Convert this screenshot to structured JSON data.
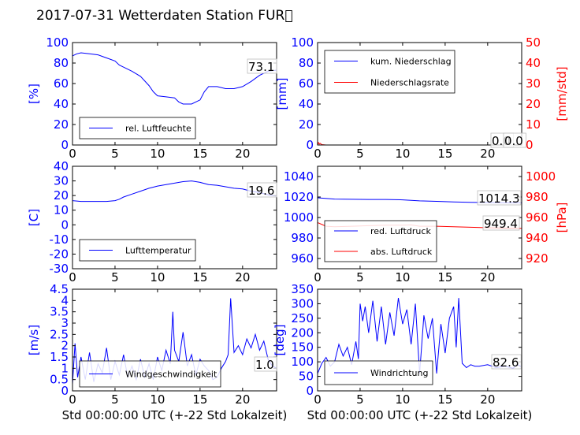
{
  "title": "2017-07-31 Wetterdaten Station FUR\u0000",
  "chart_data": [
    {
      "type": "line",
      "ylabel": "[%]",
      "xlim": [
        0,
        24
      ],
      "ylim": [
        0,
        100
      ],
      "xticks": [
        0,
        5,
        10,
        15,
        20
      ],
      "yticks": [
        0,
        20,
        40,
        60,
        80,
        100
      ],
      "legend": {
        "placement": "lower-center",
        "entries": [
          "rel. Luftfeuchte"
        ]
      },
      "last_value_label": "73.1",
      "series": [
        {
          "name": "rel. Luftfeuchte",
          "color": "#0000ff",
          "axis": "left",
          "x": [
            0,
            0.5,
            1,
            2,
            3,
            4,
            5,
            5.5,
            6,
            7,
            8,
            9,
            9.5,
            10,
            11,
            12,
            12.5,
            13,
            14,
            15,
            15.5,
            16,
            17,
            18,
            19,
            20,
            21,
            22,
            23,
            24
          ],
          "y": [
            87,
            89,
            90,
            89,
            88,
            85,
            82,
            78,
            76,
            72,
            67,
            58,
            52,
            48,
            47,
            46,
            42,
            40,
            40,
            44,
            52,
            57,
            57,
            55,
            55,
            57,
            62,
            68,
            72,
            73.1
          ]
        }
      ]
    },
    {
      "type": "line",
      "ylabel": "[mm]",
      "y2label": "[mm/std]",
      "xlim": [
        0,
        24
      ],
      "ylim": [
        0,
        100
      ],
      "y2lim": [
        0,
        50
      ],
      "xticks": [
        0,
        5,
        10,
        15,
        20
      ],
      "yticks": [
        0,
        20,
        40,
        60,
        80,
        100
      ],
      "y2ticks": [
        0,
        10,
        20,
        30,
        40,
        50
      ],
      "legend": {
        "placement": "top-left",
        "entries": [
          "kum. Niederschlag",
          "Niederschlagsrate"
        ]
      },
      "last_value_label": "0.0",
      "last_value_label_2": "0.0",
      "series": [
        {
          "name": "kum. Niederschlag",
          "color": "#0000ff",
          "axis": "left",
          "x": [
            0,
            24
          ],
          "y": [
            0,
            0
          ]
        },
        {
          "name": "Niederschlagsrate",
          "color": "#ff0000",
          "axis": "right",
          "x": [
            0,
            0.1,
            0.2,
            0.3,
            0.5,
            1,
            24
          ],
          "y": [
            0,
            1.2,
            0.5,
            0.8,
            0.2,
            0,
            0
          ]
        }
      ]
    },
    {
      "type": "line",
      "ylabel": "[C]",
      "xlim": [
        0,
        24
      ],
      "ylim": [
        -30,
        40
      ],
      "xticks": [
        0,
        5,
        10,
        15,
        20
      ],
      "yticks": [
        -30,
        -20,
        -10,
        0,
        10,
        20,
        30,
        40
      ],
      "legend": {
        "placement": "lower-center",
        "entries": [
          "Lufttemperatur"
        ]
      },
      "last_value_label": "19.6",
      "series": [
        {
          "name": "Lufttemperatur",
          "color": "#0000ff",
          "axis": "left",
          "x": [
            0,
            1,
            2,
            3,
            4,
            5,
            5.5,
            6,
            7,
            8,
            9,
            10,
            11,
            12,
            13,
            14,
            15,
            16,
            17,
            18,
            19,
            20,
            21,
            22,
            23,
            24
          ],
          "y": [
            16.5,
            16,
            16,
            16,
            16,
            16.5,
            17.5,
            19,
            21,
            23,
            25,
            26.5,
            27.5,
            28.5,
            29.5,
            30,
            29,
            27.5,
            27,
            26,
            25,
            24.5,
            23,
            22,
            20.5,
            19.6
          ]
        }
      ]
    },
    {
      "type": "line",
      "y2label": "[hPa]",
      "xlim": [
        0,
        24
      ],
      "ylim": [
        950,
        1050
      ],
      "y2lim": [
        910,
        1010
      ],
      "xticks": [
        0,
        5,
        10,
        15,
        20
      ],
      "yticks": [
        960,
        980,
        1000,
        1020,
        1040
      ],
      "y2ticks": [
        920,
        940,
        960,
        980,
        1000
      ],
      "legend": {
        "placement": "lower-left",
        "entries": [
          "red. Luftdruck",
          "abs. Luftdruck"
        ]
      },
      "last_value_label": "1014.3",
      "last_value_label_2": "949.4",
      "series": [
        {
          "name": "red. Luftdruck",
          "color": "#0000ff",
          "axis": "left",
          "x": [
            0,
            2,
            4,
            6,
            8,
            10,
            11,
            12,
            14,
            16,
            18,
            20,
            22,
            24
          ],
          "y": [
            1019.2,
            1018,
            1017.8,
            1017.6,
            1017.6,
            1017.2,
            1016.8,
            1016.2,
            1015.8,
            1015.2,
            1014.8,
            1014.6,
            1014.4,
            1014.3
          ]
        },
        {
          "name": "abs. Luftdruck",
          "color": "#ff0000",
          "axis": "right",
          "x": [
            0,
            1,
            2,
            4,
            6,
            8,
            10,
            11,
            12,
            14,
            16,
            18,
            20,
            22,
            24
          ],
          "y": [
            955,
            951.5,
            951,
            951.5,
            952,
            952.5,
            952.5,
            952.8,
            951.5,
            951.5,
            951,
            950.5,
            950,
            949.6,
            949.4
          ]
        }
      ]
    },
    {
      "type": "line",
      "ylabel": "[m/s]",
      "xlabel": "Std 00:00:00 UTC (+-22 Std Lokalzeit)",
      "xlim": [
        0,
        24
      ],
      "ylim": [
        0,
        4.5
      ],
      "xticks": [
        0,
        5,
        10,
        15,
        20
      ],
      "yticks": [
        0,
        0.5,
        1,
        1.5,
        2,
        2.5,
        3,
        3.5,
        4,
        4.5
      ],
      "legend": {
        "placement": "lower-center",
        "entries": [
          "Windgeschwindigkeit"
        ]
      },
      "last_value_label": "1.0",
      "series": [
        {
          "name": "Windgeschwindigkeit",
          "color": "#0000ff",
          "axis": "left",
          "x": [
            0,
            0.3,
            0.6,
            1,
            1.5,
            2,
            2.5,
            3,
            3.5,
            4,
            4.5,
            5,
            5.5,
            6,
            6.5,
            7,
            7.5,
            8,
            8.5,
            9,
            9.5,
            10,
            10.5,
            11,
            11.5,
            11.8,
            12,
            12.5,
            13,
            13.5,
            14,
            14.5,
            15,
            15.5,
            16,
            16.5,
            17,
            17.5,
            18,
            18.3,
            18.6,
            19,
            19.5,
            20,
            20.5,
            21,
            21.5,
            22,
            22.5,
            23,
            23.5,
            24
          ],
          "y": [
            0.3,
            2.1,
            0.6,
            1.5,
            0.5,
            1.7,
            0.4,
            1.2,
            0.8,
            1.9,
            0.5,
            1.3,
            0.7,
            1.6,
            0.6,
            1.1,
            0.5,
            1.4,
            0.6,
            1.2,
            0.5,
            1.5,
            0.9,
            1.8,
            1.2,
            3.5,
            1.8,
            1.3,
            2.6,
            1.1,
            1.6,
            0.7,
            1.4,
            1.1,
            0.9,
            0.5,
            0.6,
            1.0,
            1.3,
            1.6,
            4.1,
            1.7,
            2.0,
            1.6,
            2.3,
            1.9,
            2.5,
            1.8,
            2.2,
            1.4,
            1.1,
            1.0
          ]
        }
      ]
    },
    {
      "type": "line",
      "ylabel": "[deg]",
      "xlabel": "Std 00:00:00 UTC (+-22 Std Lokalzeit)",
      "xlim": [
        0,
        24
      ],
      "ylim": [
        0,
        350
      ],
      "xticks": [
        0,
        5,
        10,
        15,
        20
      ],
      "yticks": [
        0,
        50,
        100,
        150,
        200,
        250,
        300,
        350
      ],
      "legend": {
        "placement": "lower-left",
        "entries": [
          "Windrichtung"
        ]
      },
      "last_value_label": "82.6",
      "series": [
        {
          "name": "Windrichtung",
          "color": "#0000ff",
          "axis": "left",
          "x": [
            0,
            0.5,
            1,
            1.5,
            2,
            2.5,
            3,
            3.5,
            4,
            4.5,
            4.8,
            5,
            5.3,
            5.6,
            6,
            6.5,
            7,
            7.5,
            8,
            8.5,
            9,
            9.5,
            10,
            10.5,
            11,
            11.5,
            12,
            12.5,
            13,
            13.5,
            14,
            14.5,
            15,
            15.5,
            16,
            16.3,
            16.6,
            17,
            17.5,
            18,
            18.5,
            19,
            20,
            21,
            22,
            23,
            23.5,
            24
          ],
          "y": [
            60,
            95,
            115,
            85,
            100,
            160,
            120,
            150,
            90,
            170,
            110,
            300,
            240,
            290,
            200,
            310,
            170,
            290,
            160,
            270,
            190,
            320,
            230,
            280,
            160,
            300,
            60,
            260,
            180,
            250,
            60,
            230,
            130,
            250,
            290,
            150,
            320,
            95,
            80,
            90,
            85,
            85,
            90,
            80,
            85,
            78,
            90,
            82.6
          ]
        }
      ]
    }
  ]
}
